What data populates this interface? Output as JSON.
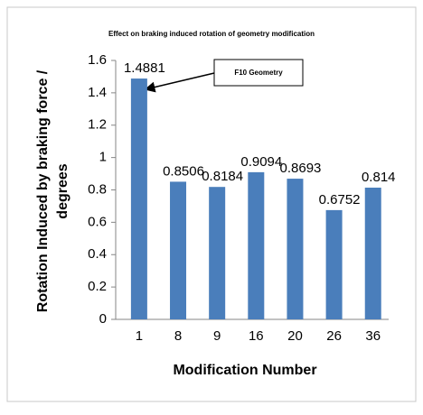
{
  "chart_data": {
    "type": "bar",
    "title": "Effect on braking induced rotation of geometry modification",
    "xlabel": "Modification Number",
    "ylabel": [
      "Rotation Induced by braking force /",
      "degrees"
    ],
    "categories": [
      "1",
      "8",
      "9",
      "16",
      "20",
      "26",
      "36"
    ],
    "values": [
      1.4881,
      0.8506,
      0.8184,
      0.9094,
      0.8693,
      0.6752,
      0.814
    ],
    "color": "#4a7ebb",
    "ylim": [
      0,
      1.6
    ],
    "yticks": [
      0,
      0.2,
      0.4,
      0.6,
      0.8,
      1,
      1.2,
      1.4,
      1.6
    ],
    "grid": false,
    "annotation": "F10 Geometry"
  }
}
